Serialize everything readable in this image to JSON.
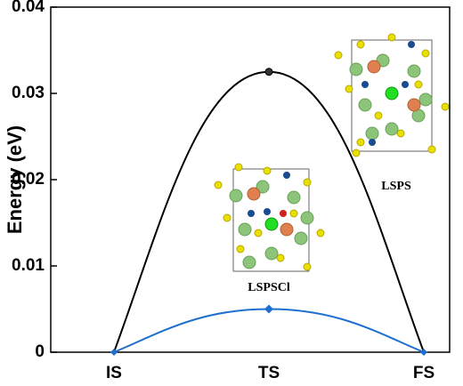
{
  "chart_data": {
    "type": "line",
    "y_label": "Energy (eV)",
    "categories": [
      "IS",
      "TS",
      "FS"
    ],
    "series": [
      {
        "color": "#000000",
        "values": [
          0,
          0.0325,
          0
        ]
      },
      {
        "color": "#1f6fd1",
        "values": [
          0,
          0.005,
          0
        ]
      }
    ],
    "annotations": [
      "LSPS",
      "LSPSCl"
    ],
    "ylim": [
      0,
      0.04
    ],
    "yticks": [
      0,
      0.01,
      0.02,
      0.03,
      0.04
    ]
  }
}
